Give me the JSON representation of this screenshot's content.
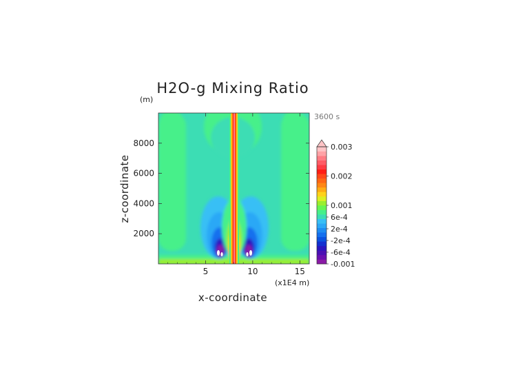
{
  "chart_data": {
    "type": "heatmap",
    "title": "H2O-g Mixing Ratio",
    "time_label": "3600 s",
    "x_axis": {
      "label": "x-coordinate",
      "unit_label": "(x1E4 m)",
      "ticks": [
        5,
        10,
        15
      ],
      "range": [
        0,
        16
      ]
    },
    "y_axis": {
      "label": "z-coordinate",
      "unit_label": "(m)",
      "ticks": [
        2000,
        4000,
        6000,
        8000
      ],
      "range": [
        0,
        10000
      ]
    },
    "colorbar": {
      "labels": [
        {
          "text": "0.003",
          "value": 0.003
        },
        {
          "text": "0.002",
          "value": 0.002
        },
        {
          "text": "0.001",
          "value": 0.001
        },
        {
          "text": "6e-4",
          "value": 0.0006
        },
        {
          "text": "2e-4",
          "value": 0.0002
        },
        {
          "text": "-2e-4",
          "value": -0.0002
        },
        {
          "text": "-6e-4",
          "value": -0.0006
        },
        {
          "text": "-0.001",
          "value": -0.001
        }
      ],
      "levels": [
        -0.001,
        -0.0009,
        -0.0008,
        -0.0007,
        -0.0006,
        -0.0005,
        -0.0004,
        -0.0003,
        -0.0002,
        -0.0001,
        0.0,
        0.0002,
        0.0004,
        0.0006,
        0.0008,
        0.001,
        0.0012,
        0.0014,
        0.0016,
        0.0018,
        0.002,
        0.0022,
        0.0024,
        0.0026,
        0.0028,
        0.003
      ],
      "colors": [
        "#8a1aa6",
        "#6a10b0",
        "#4a10b4",
        "#2a16c0",
        "#1230d0",
        "#0a52e0",
        "#1470ee",
        "#1e8cf2",
        "#2ca8f6",
        "#38bff5",
        "#3cddb4",
        "#46f08a",
        "#66f552",
        "#9aee2e",
        "#dcef22",
        "#ffd21a",
        "#ffac14",
        "#ff8614",
        "#ff6614",
        "#ff4818",
        "#ff1e14",
        "#ff3c44",
        "#ff5c66",
        "#ff7c84",
        "#ffa2a6",
        "#ffc4c6"
      ],
      "extend": "max"
    }
  }
}
